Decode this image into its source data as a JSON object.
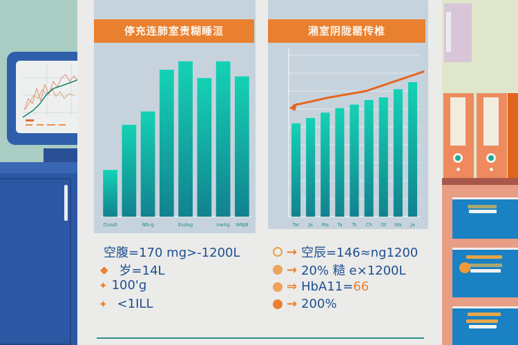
{
  "scene": {
    "monitor_icon": "line-chart-monitor",
    "decor_icons": [
      "binder-icon",
      "binder-icon",
      "filing-cabinet-icon",
      "picture-frame-icon"
    ]
  },
  "left_panel": {
    "title": "停充连肺室责糊睡洹",
    "stats": [
      {
        "bullet": "◆",
        "text": "空腹=170 mg>-1200L"
      },
      {
        "bullet": "◆",
        "text": "岁=14L"
      },
      {
        "bullet": "✦",
        "text": "100'g"
      },
      {
        "bullet": "✦",
        "text": "<1ILL"
      }
    ]
  },
  "right_panel": {
    "title": "潲室阴陇罂传椎",
    "stats": [
      {
        "marker": "hollow",
        "arrow": "→",
        "text": "空辰=146≈ng1200"
      },
      {
        "marker": "filled",
        "arrow": "→",
        "text": "20% 糙 e×1200L"
      },
      {
        "marker": "filled",
        "arrow": "⇒",
        "text": "HbA11=",
        "highlight": "66"
      },
      {
        "marker": "check",
        "arrow": "→",
        "text": "200%"
      }
    ]
  },
  "colors": {
    "accent": "#e9802f",
    "bar": "#16b9a3",
    "text": "#1f4f8f",
    "card": "#c6d3dd"
  },
  "chart_data": [
    {
      "type": "bar",
      "title": "停充连肺室责糊睡洹",
      "categories": [
        "Dusdl",
        "",
        "NN-g",
        "",
        "Esdog",
        "",
        "nwAg",
        "WBJB"
      ],
      "values": [
        28,
        55,
        63,
        88,
        93,
        83,
        93,
        84
      ],
      "ylim": [
        0,
        100
      ],
      "grid": false
    },
    {
      "type": "bar",
      "title": "潲室阴陇罂传椎",
      "categories": [
        "Tar",
        "Ja",
        "Ma",
        "Ta",
        "Ts",
        "Ch",
        "Ot",
        "Wa",
        "Ja"
      ],
      "values": [
        52,
        55,
        58,
        60.5,
        62.5,
        65,
        66.5,
        71,
        75
      ],
      "ylim": [
        0,
        90
      ],
      "grid": true,
      "trend_line": {
        "x": [
          0,
          2.5,
          5,
          9
        ],
        "y": [
          62,
          66.5,
          70,
          81
        ]
      }
    }
  ]
}
